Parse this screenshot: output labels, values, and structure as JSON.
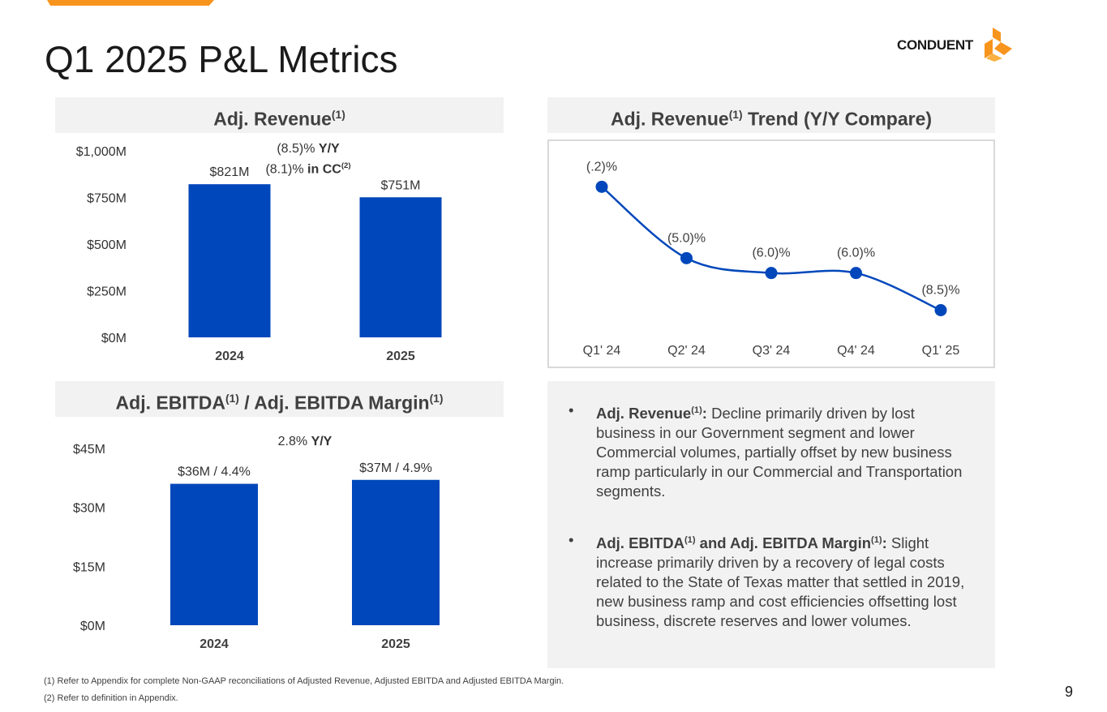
{
  "title": "Q1 2025 P&L Metrics",
  "logo": {
    "text": "CONDUENT",
    "icon": "conduent-logo-icon"
  },
  "colors": {
    "bar": "#0047bb",
    "line": "#0047bb",
    "accent": "#f7941d",
    "panel": "#f2f2f2"
  },
  "revenue_panel": {
    "heading": "Adj. Revenue",
    "heading_sup": "(1)",
    "yoy_value": "(8.5)%",
    "yoy_label": "Y/Y",
    "cc_value": "(8.1)%",
    "cc_label": "in CC",
    "cc_sup": "(2)"
  },
  "ebitda_panel": {
    "heading_part1": "Adj. EBITDA",
    "heading_sup1": "(1)",
    "heading_part2": " / Adj. EBITDA Margin",
    "heading_sup2": "(1)",
    "yoy_value": "2.8%",
    "yoy_label": "Y/Y"
  },
  "trend_panel": {
    "heading_part1": "Adj. Revenue",
    "heading_sup": "(1)",
    "heading_part2": " Trend (Y/Y Compare)"
  },
  "chart_data": [
    {
      "type": "bar",
      "title": "Adj. Revenue(1)",
      "categories": [
        "2024",
        "2025"
      ],
      "values": [
        821,
        751
      ],
      "data_labels": [
        "$821M",
        "$751M"
      ],
      "ylim": [
        0,
        1000
      ],
      "yticks": [
        0,
        250,
        500,
        750,
        1000
      ],
      "ytick_labels": [
        "$0M",
        "$250M",
        "$500M",
        "$750M",
        "$1,000M"
      ]
    },
    {
      "type": "bar",
      "title": "Adj. EBITDA(1) / Adj. EBITDA Margin(1)",
      "categories": [
        "2024",
        "2025"
      ],
      "values": [
        36,
        37
      ],
      "margins": [
        4.4,
        4.9
      ],
      "data_labels": [
        "$36M / 4.4%",
        "$37M / 4.9%"
      ],
      "ylim": [
        0,
        45
      ],
      "yticks": [
        0,
        15,
        30,
        45
      ],
      "ytick_labels": [
        "$0M",
        "$15M",
        "$30M",
        "$45M"
      ]
    },
    {
      "type": "line",
      "title": "Adj. Revenue(1) Trend (Y/Y Compare)",
      "categories": [
        "Q1' 24",
        "Q2' 24",
        "Q3' 24",
        "Q4' 24",
        "Q1' 25"
      ],
      "values": [
        -0.2,
        -5.0,
        -6.0,
        -6.0,
        -8.5
      ],
      "data_labels": [
        "(.2)%",
        "(5.0)%",
        "(6.0)%",
        "(6.0)%",
        "(8.5)%"
      ],
      "ylim": [
        -10,
        2
      ]
    }
  ],
  "bullets": [
    {
      "label": "Adj. Revenue",
      "sup": "(1)",
      "text": "Decline primarily driven by lost business in our Government segment and lower Commercial volumes, partially offset by new business ramp particularly in our Commercial and Transportation segments."
    },
    {
      "label": "Adj. EBITDA",
      "sup": "(1)",
      "label2": " and Adj. EBITDA Margin",
      "sup2": "(1)",
      "text": "Slight increase primarily driven by a recovery of legal costs related to the State of Texas matter that settled in 2019, new business ramp and cost efficiencies offsetting lost business, discrete reserves and lower volumes."
    }
  ],
  "footnotes": [
    "(1) Refer to Appendix for complete Non-GAAP reconciliations of Adjusted Revenue, Adjusted EBITDA and Adjusted EBITDA Margin.",
    "(2) Refer to definition in Appendix."
  ],
  "page_number": "9"
}
